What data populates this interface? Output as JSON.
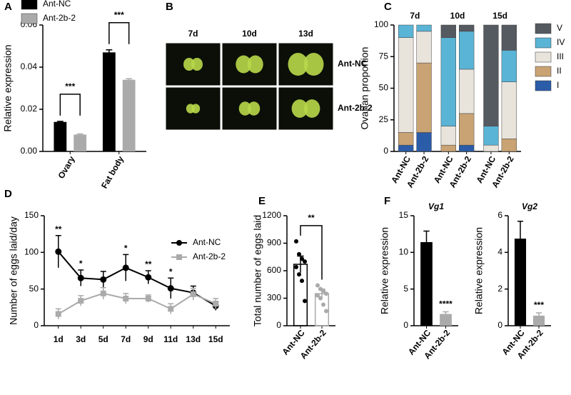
{
  "panel_labels": [
    "A",
    "B",
    "C",
    "D",
    "E",
    "F"
  ],
  "image_panel": {
    "columns": [
      "7d",
      "10d",
      "13d"
    ],
    "rows": [
      "Ant-NC",
      "Ant-2b-2"
    ]
  },
  "chart_data": [
    {
      "type": "bar",
      "ylabel": "Relative expression",
      "categories": [
        "Ovary",
        "Fat body"
      ],
      "series": [
        {
          "name": "Ant-NC",
          "color": "#000000",
          "values": [
            0.014,
            0.047
          ],
          "errors": [
            0.0003,
            0.0012
          ]
        },
        {
          "name": "Ant-2b-2",
          "color": "#aaaaaa",
          "values": [
            0.008,
            0.034
          ],
          "errors": [
            0.0003,
            0.0005
          ]
        }
      ],
      "ylim": [
        0,
        0.06
      ],
      "yticks": [
        {
          "value": 0,
          "label": "0.00"
        },
        0.02,
        0.04,
        0.06
      ],
      "significance": [
        "***",
        "***"
      ],
      "legend": "top"
    },
    {
      "type": "stacked_bar",
      "ylabel": "Ovarian proportion",
      "groups": [
        "7d",
        "10d",
        "15d"
      ],
      "categories": [
        "Ant-NC",
        "Ant-2b-2",
        "Ant-NC",
        "Ant-2b-2",
        "Ant-NC",
        "Ant-2b-2"
      ],
      "series": [
        {
          "name": "I",
          "color": "#2a5ca8",
          "values": [
            5,
            15,
            0,
            5,
            0,
            0
          ]
        },
        {
          "name": "II",
          "color": "#c9a373",
          "values": [
            10,
            55,
            5,
            25,
            0,
            10
          ]
        },
        {
          "name": "III",
          "color": "#e8e4dc",
          "values": [
            75,
            25,
            15,
            35,
            5,
            45
          ]
        },
        {
          "name": "IV",
          "color": "#5ab4d6",
          "values": [
            10,
            5,
            70,
            30,
            15,
            25
          ]
        },
        {
          "name": "V",
          "color": "#555a60",
          "values": [
            0,
            0,
            10,
            5,
            80,
            20
          ]
        }
      ],
      "ylim": [
        0,
        100
      ],
      "yticks": [
        0,
        25,
        50,
        75,
        100
      ],
      "legend": "right"
    },
    {
      "type": "line",
      "ylabel": "Number of eggs laid/day",
      "categories": [
        "1d",
        "3d",
        "5d",
        "7d",
        "9d",
        "11d",
        "13d",
        "15d"
      ],
      "series": [
        {
          "name": "Ant-NC",
          "color": "#000000",
          "marker": "circle",
          "values": [
            101,
            65,
            63,
            79,
            66,
            51,
            45,
            27
          ],
          "errors": [
            22,
            11,
            11,
            18,
            9,
            14,
            9,
            6
          ]
        },
        {
          "name": "Ant-2b-2",
          "color": "#aaaaaa",
          "marker": "square",
          "values": [
            16,
            34,
            44,
            37,
            37,
            23,
            43,
            30
          ],
          "errors": [
            7,
            7,
            8,
            7,
            5,
            7,
            8,
            7
          ]
        }
      ],
      "ylim": [
        0,
        150
      ],
      "yticks": [
        0,
        50,
        100,
        150
      ],
      "significance": [
        "**",
        "*",
        null,
        "*",
        "**",
        "*",
        null,
        null
      ],
      "legend": "upper right"
    },
    {
      "type": "bar_scatter",
      "ylabel": "Total number of eggs laid",
      "categories": [
        "Ant-NC",
        "Ant-2b-2"
      ],
      "colors": [
        "#000000",
        "#aaaaaa"
      ],
      "values": [
        670,
        350
      ],
      "errors": [
        90,
        50
      ],
      "points": [
        [
          920,
          780,
          730,
          700,
          640,
          560,
          490,
          270
        ],
        [
          440,
          400,
          380,
          350,
          330,
          300,
          230,
          160
        ]
      ],
      "ylim": [
        0,
        1200
      ],
      "yticks": [
        0,
        300,
        600,
        900,
        1200
      ],
      "significance": "**"
    },
    {
      "type": "bar",
      "title": "Vg1",
      "ylabel": "Relative expression",
      "categories": [
        "Ant-NC",
        "Ant-2b-2"
      ],
      "colors": [
        "#000000",
        "#aaaaaa"
      ],
      "values": [
        11.4,
        1.6
      ],
      "errors": [
        1.5,
        0.3
      ],
      "ylim": [
        0,
        15
      ],
      "yticks": [
        0,
        5,
        10,
        15
      ],
      "significance": [
        null,
        "****"
      ]
    },
    {
      "type": "bar",
      "title": "Vg2",
      "ylabel": "Relative expression",
      "categories": [
        "Ant-NC",
        "Ant-2b-2"
      ],
      "colors": [
        "#000000",
        "#aaaaaa"
      ],
      "values": [
        4.75,
        0.55
      ],
      "errors": [
        0.95,
        0.15
      ],
      "ylim": [
        0,
        6
      ],
      "yticks": [
        0,
        2,
        4,
        6
      ],
      "significance": [
        null,
        "***"
      ]
    }
  ]
}
